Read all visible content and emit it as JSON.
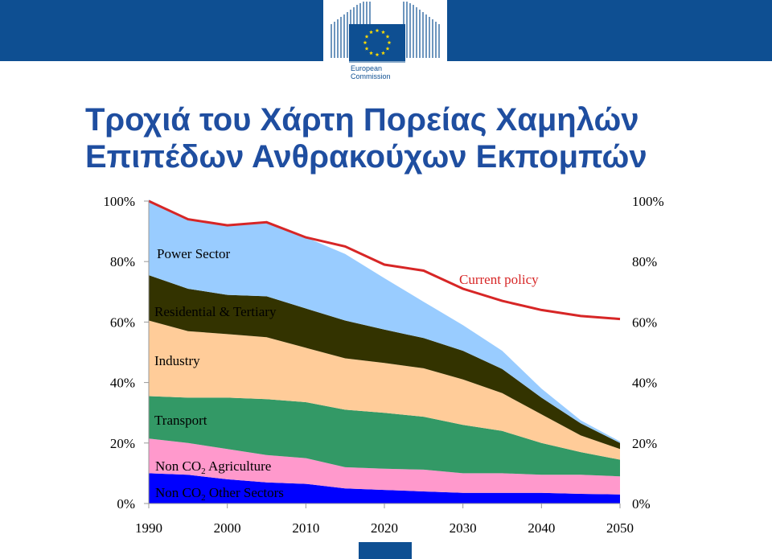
{
  "header": {
    "logo_line1": "European",
    "logo_line2": "Commission",
    "brand_color": "#0e4f92"
  },
  "title": {
    "line1": "Τροχιά του Χάρτη Πορείας Χαμηλών",
    "line2": "Επιπέδων Ανθρακούχων Εκπομπών",
    "color": "#1f4ea0"
  },
  "chart_data": {
    "type": "area",
    "x": [
      1990,
      1995,
      2000,
      2005,
      2010,
      2015,
      2020,
      2025,
      2030,
      2035,
      2040,
      2045,
      2050
    ],
    "x_ticks": [
      "1990",
      "2000",
      "2010",
      "2020",
      "2030",
      "2040",
      "2050"
    ],
    "y_ticks": [
      "0%",
      "20%",
      "40%",
      "60%",
      "80%",
      "100%"
    ],
    "ylim": [
      0,
      100
    ],
    "series": [
      {
        "name": "Non CO2 Other Sectors",
        "color": "#0000ff",
        "values": [
          10,
          9.5,
          8,
          7,
          6.5,
          5,
          4.5,
          4,
          3.5,
          3.5,
          3.5,
          3.2,
          3
        ]
      },
      {
        "name": "Non CO2 Agriculture",
        "color": "#ff99cc",
        "values": [
          11.5,
          10.5,
          10,
          9,
          8.5,
          7,
          7,
          7.2,
          6.5,
          6.5,
          6,
          6.3,
          6
        ]
      },
      {
        "name": "Transport",
        "color": "#339966",
        "values": [
          14,
          15,
          17,
          18.5,
          18.5,
          19,
          18.5,
          17.5,
          16,
          14,
          10.5,
          7.5,
          5.5
        ]
      },
      {
        "name": "Industry",
        "color": "#ffcc99",
        "values": [
          25,
          22,
          21,
          20.5,
          18,
          17,
          16.5,
          16,
          15,
          12.5,
          9.5,
          5.5,
          3.5
        ]
      },
      {
        "name": "Residential & Tertiary",
        "color": "#333300",
        "values": [
          15,
          14,
          13,
          13.5,
          13,
          12.5,
          11,
          10,
          9.5,
          8,
          5.5,
          4,
          2
        ]
      },
      {
        "name": "Power Sector",
        "color": "#99ccff",
        "values": [
          25,
          23,
          23,
          24.5,
          23.5,
          22,
          17,
          12,
          8.5,
          6,
          3,
          1,
          0.5
        ]
      }
    ],
    "reference_line": {
      "name": "Current policy",
      "color": "#d72626",
      "values": [
        100,
        94,
        92,
        93,
        88,
        85,
        79,
        77,
        71,
        67,
        64,
        62,
        61
      ]
    }
  }
}
